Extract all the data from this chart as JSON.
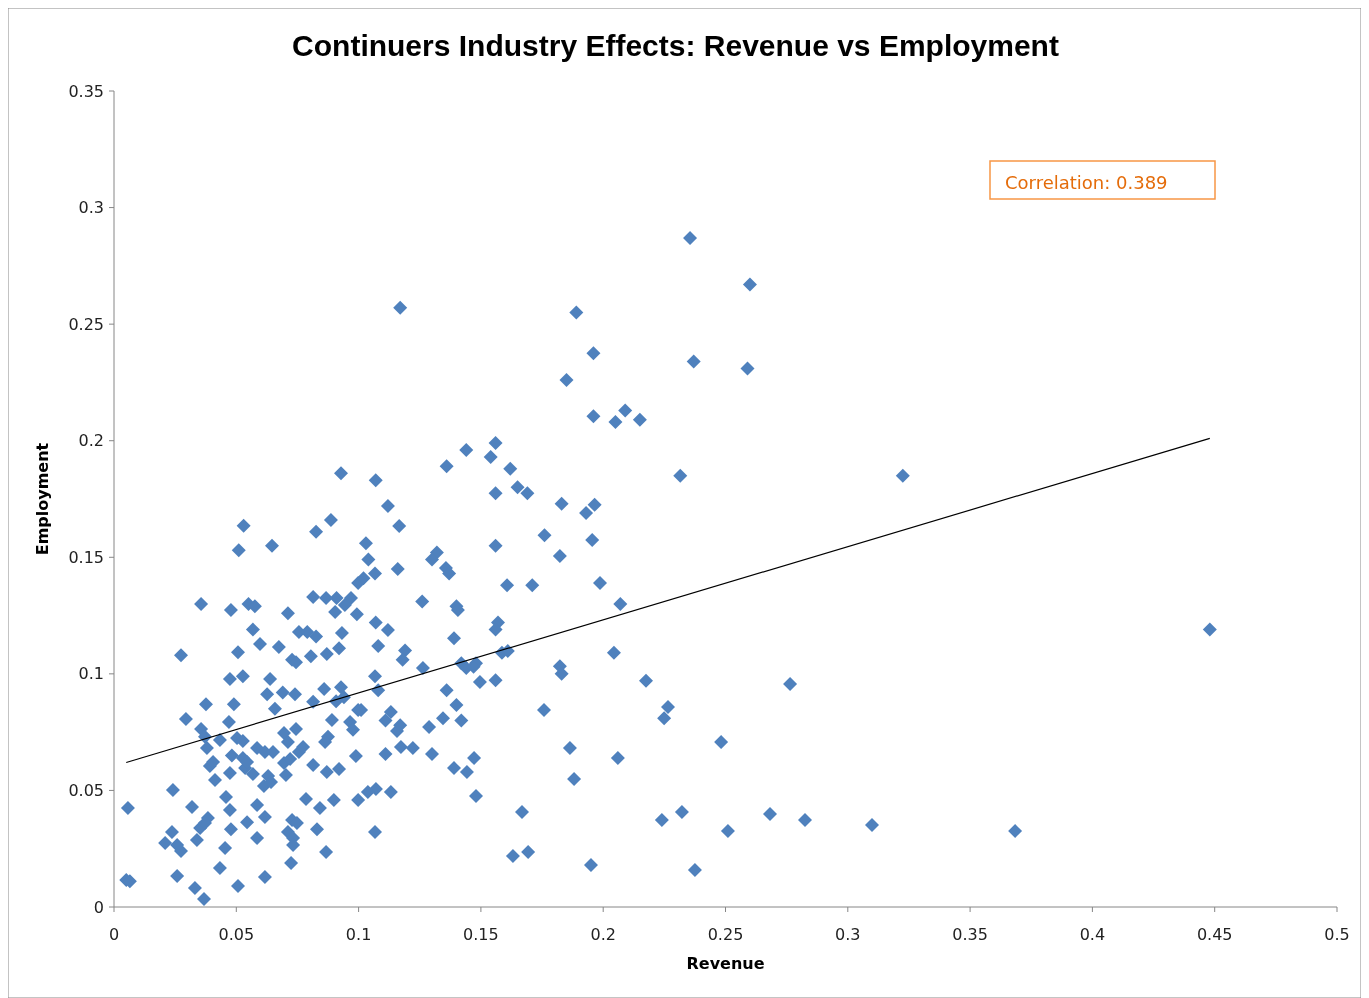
{
  "chart_data": {
    "type": "scatter",
    "title": "Continuers Industry Effects: Revenue vs Employment",
    "xlabel": "Revenue",
    "ylabel": "Employment",
    "annotations": [
      "Correlation: 0.389"
    ],
    "xlim": [
      0,
      0.5
    ],
    "xticks": [
      0,
      0.05,
      0.1,
      0.15,
      0.2,
      0.25,
      0.3,
      0.35,
      0.4,
      0.45,
      0.5
    ],
    "ylim": [
      0,
      0.35
    ],
    "yticks": [
      0,
      0.05,
      0.1,
      0.15,
      0.2,
      0.25,
      0.3,
      0.35
    ],
    "grid": false,
    "series": [
      {
        "color": "#4f81bd",
        "marker": "diamond",
        "x": [
          0.0057,
          0.005,
          0.0065,
          0.2355,
          0.26,
          0.117,
          0.189,
          0.196,
          0.237,
          0.185,
          0.259,
          0.196,
          0.209,
          0.205,
          0.215,
          0.144,
          0.156,
          0.136,
          0.154,
          0.2315,
          0.3225,
          0.107,
          0.0928,
          0.162,
          0.165,
          0.169,
          0.156,
          0.112,
          0.183,
          0.1965,
          0.193,
          0.176,
          0.0887,
          0.053,
          0.0826,
          0.1166,
          0.1955,
          0.1823,
          0.156,
          0.103,
          0.051,
          0.0646,
          0.132,
          0.13,
          0.104,
          0.1357,
          0.137,
          0.116,
          0.1607,
          0.171,
          0.1987,
          0.1067,
          0.0998,
          0.102,
          0.0356,
          0.0478,
          0.055,
          0.0576,
          0.0711,
          0.0944,
          0.0969,
          0.091,
          0.0814,
          0.0867,
          0.126,
          0.14,
          0.1406,
          0.0993,
          0.207,
          0.0904,
          0.157,
          0.156,
          0.107,
          0.0568,
          0.0756,
          0.079,
          0.0826,
          0.112,
          0.0932,
          0.139,
          0.0274,
          0.0507,
          0.0597,
          0.0674,
          0.0728,
          0.0744,
          0.0805,
          0.087,
          0.092,
          0.108,
          0.119,
          0.118,
          0.142,
          0.144,
          0.148,
          0.147,
          0.1586,
          0.161,
          0.2044,
          0.1823,
          0.183,
          0.1263,
          0.448,
          0.0527,
          0.0638,
          0.0474,
          0.1067,
          0.108,
          0.136,
          0.0928,
          0.094,
          0.0859,
          0.156,
          0.1496,
          0.2175,
          0.2764,
          0.0376,
          0.049,
          0.0626,
          0.069,
          0.074,
          0.0658,
          0.0814,
          0.0908,
          0.0998,
          0.101,
          0.0891,
          0.14,
          0.2265,
          0.1758,
          0.2249,
          0.0294,
          0.047,
          0.1132,
          0.111,
          0.1345,
          0.142,
          0.117,
          0.1157,
          0.1288,
          0.0356,
          0.0372,
          0.0744,
          0.0875,
          0.0863,
          0.0503,
          0.0527,
          0.0433,
          0.0965,
          0.0977,
          0.0695,
          0.038,
          0.0585,
          0.0617,
          0.065,
          0.0711,
          0.0756,
          0.0773,
          0.1173,
          0.1222,
          0.111,
          0.13,
          0.1864,
          0.2482,
          0.0482,
          0.0527,
          0.1472,
          0.0989,
          0.206,
          0.0392,
          0.0405,
          0.0536,
          0.0544,
          0.0695,
          0.072,
          0.0474,
          0.0568,
          0.063,
          0.0814,
          0.087,
          0.092,
          0.139,
          0.1443,
          0.0413,
          0.0703,
          0.1881,
          0.0241,
          0.0613,
          0.0642,
          0.1071,
          0.1038,
          0.1132,
          0.0998,
          0.0458,
          0.0785,
          0.0899,
          0.148,
          0.0319,
          0.0474,
          0.0585,
          0.0842,
          0.1668,
          0.2322,
          0.0384,
          0.0728,
          0.0748,
          0.0617,
          0.0544,
          0.224,
          0.2682,
          0.2825,
          0.3099,
          0.3684,
          0.251,
          0.0352,
          0.0372,
          0.0478,
          0.083,
          0.1067,
          0.0237,
          0.0711,
          0.0585,
          0.0209,
          0.0258,
          0.0339,
          0.0732,
          0.0732,
          0.0274,
          0.0454,
          0.0867,
          0.1631,
          0.1693,
          0.0724,
          0.0433,
          0.195,
          0.2375,
          0.0258,
          0.0617,
          0.0331,
          0.0507,
          0.0368
        ],
        "values": [
          0.0425,
          0.0116,
          0.011,
          0.287,
          0.267,
          0.257,
          0.255,
          0.2375,
          0.234,
          0.226,
          0.231,
          0.2105,
          0.213,
          0.208,
          0.209,
          0.196,
          0.199,
          0.189,
          0.193,
          0.185,
          0.185,
          0.183,
          0.186,
          0.188,
          0.18,
          0.1775,
          0.1775,
          0.172,
          0.173,
          0.1725,
          0.169,
          0.1595,
          0.166,
          0.1635,
          0.161,
          0.1634,
          0.1574,
          0.1505,
          0.155,
          0.156,
          0.153,
          0.155,
          0.152,
          0.149,
          0.149,
          0.1454,
          0.143,
          0.145,
          0.138,
          0.138,
          0.139,
          0.143,
          0.139,
          0.141,
          0.13,
          0.1274,
          0.13,
          0.129,
          0.126,
          0.1295,
          0.1325,
          0.1325,
          0.133,
          0.1325,
          0.131,
          0.129,
          0.1274,
          0.1256,
          0.13,
          0.1265,
          0.122,
          0.119,
          0.122,
          0.119,
          0.118,
          0.118,
          0.116,
          0.1188,
          0.1175,
          0.1153,
          0.108,
          0.1093,
          0.1128,
          0.1115,
          0.106,
          0.105,
          0.1076,
          0.1085,
          0.111,
          0.112,
          0.11,
          0.106,
          0.1046,
          0.1025,
          0.1046,
          0.103,
          0.109,
          0.1098,
          0.109,
          0.1033,
          0.1,
          0.1025,
          0.119,
          0.099,
          0.0978,
          0.0978,
          0.099,
          0.093,
          0.093,
          0.0943,
          0.09,
          0.0935,
          0.0973,
          0.0965,
          0.097,
          0.0956,
          0.087,
          0.087,
          0.0913,
          0.092,
          0.0913,
          0.085,
          0.088,
          0.0883,
          0.0845,
          0.0845,
          0.0802,
          0.0866,
          0.0858,
          0.0845,
          0.081,
          0.0806,
          0.0793,
          0.0836,
          0.08,
          0.081,
          0.08,
          0.078,
          0.0755,
          0.0772,
          0.0763,
          0.073,
          0.0763,
          0.073,
          0.0708,
          0.0725,
          0.0712,
          0.0716,
          0.0793,
          0.076,
          0.0746,
          0.0682,
          0.0682,
          0.0665,
          0.0665,
          0.0708,
          0.0665,
          0.0686,
          0.0686,
          0.0682,
          0.0656,
          0.0656,
          0.0682,
          0.0708,
          0.065,
          0.0639,
          0.0639,
          0.0648,
          0.0639,
          0.0605,
          0.0622,
          0.0596,
          0.0622,
          0.0618,
          0.0635,
          0.0575,
          0.057,
          0.0562,
          0.0609,
          0.0579,
          0.0592,
          0.0596,
          0.0579,
          0.0545,
          0.0566,
          0.0549,
          0.0502,
          0.0519,
          0.0536,
          0.0506,
          0.0493,
          0.0493,
          0.0459,
          0.0472,
          0.0463,
          0.0459,
          0.0476,
          0.0429,
          0.0416,
          0.0437,
          0.0425,
          0.0407,
          0.0407,
          0.0382,
          0.0373,
          0.036,
          0.0386,
          0.0364,
          0.0373,
          0.0399,
          0.0373,
          0.0352,
          0.0326,
          0.0326,
          0.0339,
          0.036,
          0.0334,
          0.0334,
          0.0322,
          0.0322,
          0.0322,
          0.0296,
          0.0274,
          0.0266,
          0.0287,
          0.0296,
          0.0266,
          0.024,
          0.0253,
          0.0236,
          0.0219,
          0.0236,
          0.0189,
          0.0167,
          0.018,
          0.0159,
          0.0133,
          0.0129,
          0.0081,
          0.009,
          0.0034
        ]
      },
      {
        "type": "line",
        "color": "#000000",
        "marker": "none",
        "line_style": "solid",
        "x": [
          0.005,
          0.448
        ],
        "values": [
          0.062,
          0.201
        ]
      }
    ]
  }
}
